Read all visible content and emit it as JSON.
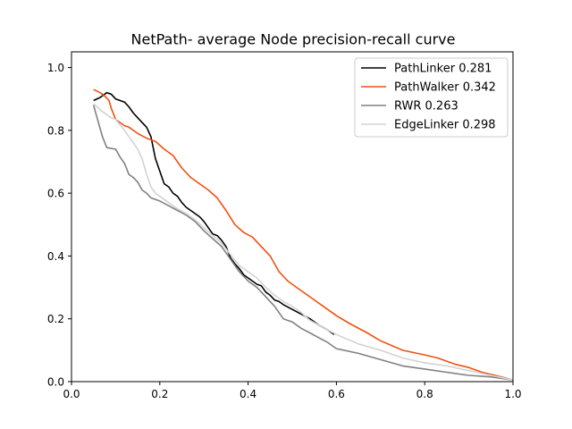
{
  "chart_data": {
    "type": "line",
    "title": "NetPath- average Node precision-recall curve",
    "xlabel": "",
    "ylabel": "",
    "xlim": [
      0.0,
      1.0
    ],
    "ylim": [
      0.0,
      1.05
    ],
    "xticks": [
      "0.0",
      "0.2",
      "0.4",
      "0.6",
      "0.8",
      "1.0"
    ],
    "yticks": [
      "0.0",
      "0.2",
      "0.4",
      "0.6",
      "0.8",
      "1.0"
    ],
    "grid": false,
    "legend_position": "upper right",
    "series": [
      {
        "name": "PathLinker 0.281",
        "color": "#000000",
        "x": [
          0.05,
          0.065,
          0.08,
          0.09,
          0.1,
          0.12,
          0.13,
          0.14,
          0.15,
          0.16,
          0.17,
          0.18,
          0.19,
          0.2,
          0.21,
          0.22,
          0.23,
          0.24,
          0.25,
          0.26,
          0.27,
          0.28,
          0.29,
          0.3,
          0.31,
          0.32,
          0.33,
          0.34,
          0.35,
          0.36,
          0.37,
          0.38,
          0.39,
          0.4,
          0.41,
          0.42,
          0.43,
          0.44,
          0.45,
          0.46,
          0.47,
          0.48,
          0.5,
          0.52,
          0.54,
          0.56,
          0.58,
          0.595
        ],
        "y": [
          0.895,
          0.905,
          0.92,
          0.915,
          0.9,
          0.89,
          0.875,
          0.855,
          0.84,
          0.825,
          0.81,
          0.78,
          0.71,
          0.67,
          0.63,
          0.62,
          0.6,
          0.59,
          0.57,
          0.555,
          0.545,
          0.535,
          0.525,
          0.51,
          0.49,
          0.47,
          0.465,
          0.45,
          0.43,
          0.395,
          0.375,
          0.36,
          0.34,
          0.33,
          0.32,
          0.31,
          0.305,
          0.285,
          0.275,
          0.26,
          0.255,
          0.245,
          0.23,
          0.215,
          0.2,
          0.18,
          0.165,
          0.15
        ]
      },
      {
        "name": "PathWalker 0.342",
        "color": "#f0500f",
        "x": [
          0.05,
          0.065,
          0.075,
          0.085,
          0.09,
          0.1,
          0.11,
          0.12,
          0.13,
          0.14,
          0.15,
          0.17,
          0.19,
          0.21,
          0.23,
          0.25,
          0.27,
          0.29,
          0.31,
          0.33,
          0.35,
          0.37,
          0.39,
          0.41,
          0.43,
          0.45,
          0.47,
          0.49,
          0.51,
          0.53,
          0.55,
          0.57,
          0.6,
          0.63,
          0.67,
          0.7,
          0.75,
          0.8,
          0.83,
          0.87,
          0.9,
          0.93,
          0.96,
          1.0
        ],
        "y": [
          0.93,
          0.92,
          0.91,
          0.895,
          0.87,
          0.835,
          0.825,
          0.815,
          0.81,
          0.8,
          0.79,
          0.775,
          0.765,
          0.74,
          0.72,
          0.68,
          0.65,
          0.63,
          0.61,
          0.585,
          0.545,
          0.5,
          0.475,
          0.46,
          0.43,
          0.4,
          0.35,
          0.32,
          0.3,
          0.28,
          0.26,
          0.24,
          0.21,
          0.185,
          0.155,
          0.13,
          0.1,
          0.085,
          0.075,
          0.055,
          0.045,
          0.03,
          0.02,
          0.005
        ]
      },
      {
        "name": "RWR 0.263",
        "color": "#808080",
        "x": [
          0.05,
          0.06,
          0.07,
          0.08,
          0.1,
          0.11,
          0.12,
          0.13,
          0.14,
          0.15,
          0.16,
          0.17,
          0.18,
          0.2,
          0.22,
          0.24,
          0.26,
          0.28,
          0.3,
          0.32,
          0.34,
          0.36,
          0.38,
          0.4,
          0.42,
          0.44,
          0.45,
          0.46,
          0.48,
          0.5,
          0.52,
          0.54,
          0.56,
          0.58,
          0.6,
          0.65,
          0.7,
          0.75,
          0.8,
          0.85,
          0.9,
          0.95,
          1.0
        ],
        "y": [
          0.88,
          0.83,
          0.78,
          0.745,
          0.74,
          0.715,
          0.695,
          0.66,
          0.65,
          0.635,
          0.61,
          0.6,
          0.585,
          0.575,
          0.56,
          0.545,
          0.53,
          0.51,
          0.48,
          0.455,
          0.43,
          0.39,
          0.35,
          0.32,
          0.3,
          0.27,
          0.255,
          0.24,
          0.2,
          0.19,
          0.17,
          0.155,
          0.14,
          0.125,
          0.105,
          0.09,
          0.07,
          0.05,
          0.04,
          0.03,
          0.02,
          0.015,
          0.005
        ]
      },
      {
        "name": "EdgeLinker 0.298",
        "color": "#d3d3d3",
        "x": [
          0.05,
          0.07,
          0.09,
          0.1,
          0.12,
          0.13,
          0.14,
          0.15,
          0.16,
          0.17,
          0.18,
          0.19,
          0.2,
          0.22,
          0.24,
          0.26,
          0.28,
          0.3,
          0.32,
          0.34,
          0.36,
          0.38,
          0.4,
          0.42,
          0.44,
          0.46,
          0.48,
          0.5,
          0.52,
          0.54,
          0.56,
          0.58,
          0.6,
          0.65,
          0.7,
          0.75,
          0.8,
          0.85,
          0.9,
          0.95,
          1.0
        ],
        "y": [
          0.885,
          0.86,
          0.84,
          0.835,
          0.8,
          0.78,
          0.76,
          0.74,
          0.71,
          0.66,
          0.62,
          0.6,
          0.59,
          0.57,
          0.55,
          0.535,
          0.515,
          0.49,
          0.465,
          0.44,
          0.405,
          0.37,
          0.35,
          0.33,
          0.3,
          0.275,
          0.255,
          0.24,
          0.22,
          0.195,
          0.18,
          0.165,
          0.15,
          0.12,
          0.1,
          0.075,
          0.06,
          0.05,
          0.035,
          0.02,
          0.005
        ]
      }
    ]
  }
}
